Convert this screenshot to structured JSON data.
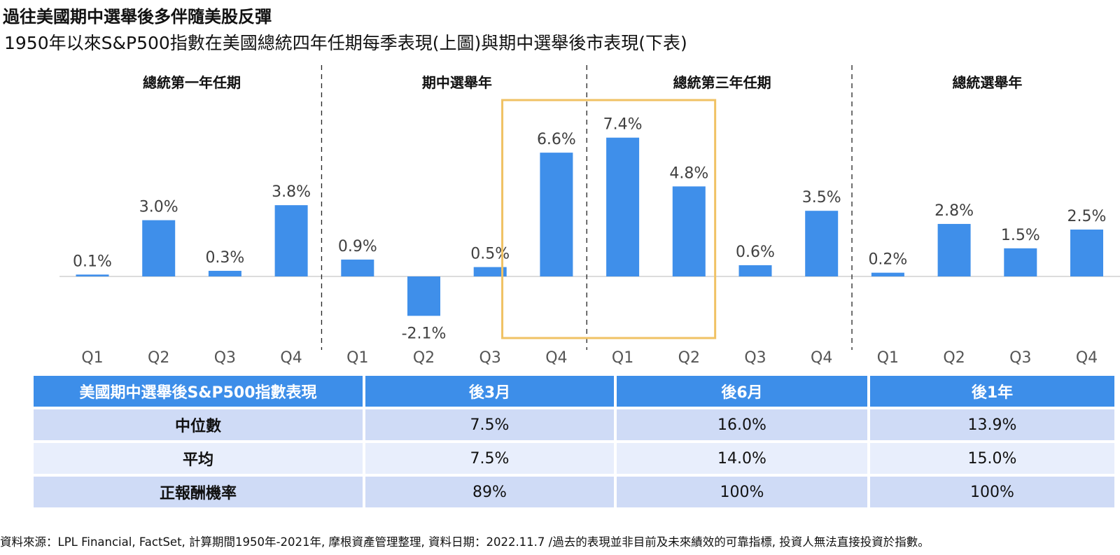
{
  "title": "過往美國期中選舉後多伴隨美股反彈",
  "subtitle": "1950年以來S&P500指數在美國總統四年任期每季表現(上圖)與期中選舉後市表現(下表)",
  "chart_data": {
    "type": "bar",
    "groups": [
      "總統第一年任期",
      "期中選舉年",
      "總統第三年任期",
      "總統選舉年"
    ],
    "categories": [
      "Q1",
      "Q2",
      "Q3",
      "Q4",
      "Q1",
      "Q2",
      "Q3",
      "Q4",
      "Q1",
      "Q2",
      "Q3",
      "Q4",
      "Q1",
      "Q2",
      "Q3",
      "Q4"
    ],
    "values": [
      0.1,
      3.0,
      0.3,
      3.8,
      0.9,
      -2.1,
      0.5,
      6.6,
      7.4,
      4.8,
      0.6,
      3.5,
      0.2,
      2.8,
      1.5,
      2.5
    ],
    "labels": [
      "0.1%",
      "3.0%",
      "0.3%",
      "3.8%",
      "0.9%",
      "-2.1%",
      "0.5%",
      "6.6%",
      "7.4%",
      "4.8%",
      "0.6%",
      "3.5%",
      "0.2%",
      "2.8%",
      "1.5%",
      "2.5%"
    ],
    "unit": "%",
    "highlight": {
      "from_index": 7,
      "to_index": 9
    },
    "bar_color": "#3f8fea",
    "highlight_color": "#f0c264",
    "ylim": [
      -2.1,
      7.4
    ],
    "grid": false
  },
  "table": {
    "headers": [
      "美國期中選舉後S&P500指數表現",
      "後3月",
      "後6月",
      "後1年"
    ],
    "rows": [
      [
        "中位數",
        "7.5%",
        "16.0%",
        "13.9%"
      ],
      [
        "平均",
        "7.5%",
        "14.0%",
        "15.0%"
      ],
      [
        "正報酬機率",
        "89%",
        "100%",
        "100%"
      ]
    ]
  },
  "footer": "資料來源：LPL Financial, FactSet, 計算期間1950年-2021年,  摩根資產管理整理, 資料日期：2022.11.7 /過去的表現並非目前及未來績效的可靠指標,  投資人無法直接投資於指數。"
}
